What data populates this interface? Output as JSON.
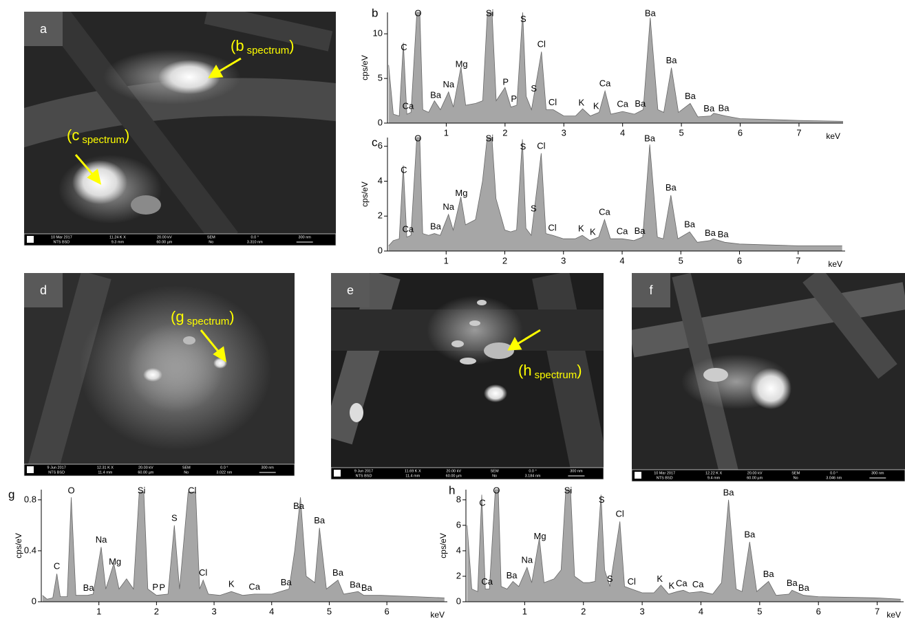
{
  "chart_data": [
    {
      "type": "area",
      "panel": "b",
      "y_label": "cps/eV",
      "x_label": "keV",
      "color": "#a6a6a6",
      "xlim": [
        0,
        7.75
      ],
      "ylim": [
        0,
        12.4
      ],
      "xticks": [
        1,
        2,
        3,
        4,
        5,
        6,
        7
      ],
      "yticks": [
        0,
        5,
        10
      ],
      "x": [
        0.02,
        0.1,
        0.2,
        0.27,
        0.33,
        0.4,
        0.5,
        0.55,
        0.6,
        0.7,
        0.8,
        0.9,
        1.04,
        1.12,
        1.25,
        1.33,
        1.5,
        1.62,
        1.7,
        1.78,
        1.85,
        2.0,
        2.1,
        2.2,
        2.3,
        2.36,
        2.45,
        2.62,
        2.7,
        2.82,
        3.0,
        3.2,
        3.32,
        3.45,
        3.6,
        3.7,
        3.8,
        4.0,
        4.2,
        4.35,
        4.47,
        4.6,
        4.7,
        4.83,
        4.95,
        5.15,
        5.28,
        5.5,
        5.55,
        5.75,
        6.0,
        7.0,
        7.75
      ],
      "values": [
        6.5,
        1,
        0.8,
        9,
        1,
        1.2,
        12.4,
        12.4,
        1.5,
        1.2,
        2.5,
        1.5,
        3.5,
        1.8,
        6.3,
        2,
        2.2,
        2.5,
        12.4,
        12.4,
        2.5,
        4,
        1.8,
        2,
        12.4,
        3,
        1.5,
        8,
        1.5,
        1.5,
        0.8,
        0.8,
        1.6,
        0.8,
        1.2,
        3.6,
        1,
        1.3,
        1,
        1.5,
        11.8,
        1.5,
        1.2,
        6.2,
        1.2,
        2.2,
        0.7,
        0.8,
        1.1,
        0.8,
        0.5,
        0.3,
        0.2
      ],
      "peaks": [
        {
          "label": "C",
          "x": 0.28
        },
        {
          "label": "Ca",
          "x": 0.35
        },
        {
          "label": "O",
          "x": 0.52
        },
        {
          "label": "Ba",
          "x": 0.82
        },
        {
          "label": "Na",
          "x": 1.04
        },
        {
          "label": "Mg",
          "x": 1.26
        },
        {
          "label": "Si",
          "x": 1.74
        },
        {
          "label": "P",
          "x": 2.01
        },
        {
          "label": "P",
          "x": 2.15
        },
        {
          "label": "S",
          "x": 2.31
        },
        {
          "label": "S",
          "x": 2.49
        },
        {
          "label": "Cl",
          "x": 2.62
        },
        {
          "label": "Cl",
          "x": 2.81
        },
        {
          "label": "K",
          "x": 3.3
        },
        {
          "label": "K",
          "x": 3.55
        },
        {
          "label": "Ca",
          "x": 3.7
        },
        {
          "label": "Ca",
          "x": 4.0
        },
        {
          "label": "Ba",
          "x": 4.3
        },
        {
          "label": "Ba",
          "x": 4.47
        },
        {
          "label": "Ba",
          "x": 4.83
        },
        {
          "label": "Ba",
          "x": 5.15
        },
        {
          "label": "Ba",
          "x": 5.47
        },
        {
          "label": "Ba",
          "x": 5.72
        }
      ]
    },
    {
      "type": "area",
      "panel": "c",
      "y_label": "cps/eV",
      "x_label": "keV",
      "color": "#a6a6a6",
      "xlim": [
        0,
        7.8
      ],
      "ylim": [
        0,
        6.5
      ],
      "xticks": [
        1,
        2,
        3,
        4,
        5,
        6,
        7
      ],
      "yticks": [
        0,
        2,
        4,
        6
      ],
      "x": [
        0.02,
        0.1,
        0.2,
        0.27,
        0.33,
        0.4,
        0.5,
        0.55,
        0.6,
        0.7,
        0.8,
        0.9,
        1.04,
        1.12,
        1.25,
        1.33,
        1.5,
        1.62,
        1.7,
        1.78,
        1.85,
        2.0,
        2.1,
        2.2,
        2.3,
        2.36,
        2.45,
        2.62,
        2.7,
        2.82,
        3.0,
        3.2,
        3.32,
        3.45,
        3.6,
        3.7,
        3.8,
        4.0,
        4.2,
        4.35,
        4.47,
        4.6,
        4.7,
        4.83,
        4.95,
        5.15,
        5.28,
        5.5,
        5.55,
        5.75,
        6.0,
        7.0,
        7.75
      ],
      "values": [
        0.3,
        0.6,
        0.7,
        4.9,
        0.8,
        0.9,
        6.5,
        6.5,
        1,
        0.9,
        1,
        0.9,
        2.1,
        1.2,
        3.1,
        1.5,
        1.8,
        4,
        6.5,
        6.5,
        3,
        1.2,
        1.1,
        1.2,
        6.4,
        1.3,
        0.9,
        5.6,
        1,
        0.9,
        0.7,
        0.7,
        0.9,
        0.6,
        0.8,
        1.8,
        0.7,
        0.7,
        0.6,
        0.8,
        6.1,
        0.8,
        0.7,
        3.2,
        0.7,
        1.1,
        0.5,
        0.6,
        0.7,
        0.5,
        0.4,
        0.3,
        0.3
      ],
      "peaks": [
        {
          "label": "C",
          "x": 0.28
        },
        {
          "label": "Ca",
          "x": 0.35
        },
        {
          "label": "O",
          "x": 0.52
        },
        {
          "label": "Ba",
          "x": 0.82
        },
        {
          "label": "Na",
          "x": 1.04
        },
        {
          "label": "Mg",
          "x": 1.26
        },
        {
          "label": "Si",
          "x": 1.74
        },
        {
          "label": "S",
          "x": 2.31
        },
        {
          "label": "S",
          "x": 2.49
        },
        {
          "label": "Cl",
          "x": 2.62
        },
        {
          "label": "Cl",
          "x": 2.81
        },
        {
          "label": "K",
          "x": 3.3
        },
        {
          "label": "K",
          "x": 3.5
        },
        {
          "label": "Ca",
          "x": 3.7
        },
        {
          "label": "Ca",
          "x": 4.0
        },
        {
          "label": "Ba",
          "x": 4.3
        },
        {
          "label": "Ba",
          "x": 4.47
        },
        {
          "label": "Ba",
          "x": 4.83
        },
        {
          "label": "Ba",
          "x": 5.15
        },
        {
          "label": "Ba",
          "x": 5.5
        },
        {
          "label": "Ba",
          "x": 5.72
        }
      ]
    },
    {
      "type": "area",
      "panel": "g",
      "y_label": "cps/eV",
      "x_label": "keV",
      "color": "#a6a6a6",
      "xlim": [
        0,
        7.05
      ],
      "ylim": [
        0,
        0.88
      ],
      "xticks": [
        1,
        2,
        3,
        4,
        5,
        6
      ],
      "yticks": [
        0,
        0.4,
        0.8
      ],
      "x": [
        0.02,
        0.1,
        0.2,
        0.27,
        0.33,
        0.45,
        0.52,
        0.6,
        0.8,
        0.9,
        1.04,
        1.12,
        1.26,
        1.35,
        1.48,
        1.6,
        1.7,
        1.78,
        1.85,
        2.0,
        2.2,
        2.31,
        2.4,
        2.55,
        2.68,
        2.75,
        2.81,
        2.9,
        3.1,
        3.3,
        3.5,
        3.7,
        4.0,
        4.3,
        4.4,
        4.5,
        4.6,
        4.75,
        4.83,
        4.95,
        5.15,
        5.25,
        5.5,
        5.6,
        5.9,
        6.5,
        7.0
      ],
      "values": [
        0.05,
        0.02,
        0.03,
        0.22,
        0.04,
        0.04,
        0.82,
        0.05,
        0.05,
        0.06,
        0.43,
        0.1,
        0.3,
        0.1,
        0.18,
        0.1,
        0.86,
        0.86,
        0.1,
        0.05,
        0.06,
        0.6,
        0.1,
        0.86,
        0.86,
        0.1,
        0.17,
        0.06,
        0.05,
        0.08,
        0.05,
        0.06,
        0.06,
        0.1,
        0.4,
        0.82,
        0.2,
        0.15,
        0.58,
        0.1,
        0.17,
        0.06,
        0.08,
        0.05,
        0.05,
        0.04,
        0.03
      ],
      "peaks": [
        {
          "label": "C",
          "x": 0.27
        },
        {
          "label": "O",
          "x": 0.52
        },
        {
          "label": "Ba",
          "x": 0.82
        },
        {
          "label": "Na",
          "x": 1.04
        },
        {
          "label": "Mg",
          "x": 1.28
        },
        {
          "label": "Si",
          "x": 1.74
        },
        {
          "label": "P",
          "x": 1.98
        },
        {
          "label": "P",
          "x": 2.1
        },
        {
          "label": "S",
          "x": 2.31
        },
        {
          "label": "Cl",
          "x": 2.62
        },
        {
          "label": "Cl",
          "x": 2.81
        },
        {
          "label": "K",
          "x": 3.3
        },
        {
          "label": "Ca",
          "x": 3.7
        },
        {
          "label": "Ba",
          "x": 4.25
        },
        {
          "label": "Ba",
          "x": 4.47
        },
        {
          "label": "Ba",
          "x": 4.83
        },
        {
          "label": "Ba",
          "x": 5.15
        },
        {
          "label": "Ba",
          "x": 5.45
        },
        {
          "label": "Ba",
          "x": 5.65
        }
      ]
    },
    {
      "type": "area",
      "panel": "h",
      "y_label": "cps/eV",
      "x_label": "keV",
      "color": "#a6a6a6",
      "xlim": [
        0,
        7.45
      ],
      "ylim": [
        0,
        8.8
      ],
      "xticks": [
        1,
        2,
        3,
        4,
        5,
        6,
        7
      ],
      "yticks": [
        0,
        2,
        4,
        6,
        8
      ],
      "x": [
        0.02,
        0.1,
        0.2,
        0.27,
        0.33,
        0.4,
        0.5,
        0.55,
        0.6,
        0.7,
        0.8,
        0.9,
        1.04,
        1.12,
        1.25,
        1.33,
        1.5,
        1.62,
        1.7,
        1.78,
        1.85,
        2.0,
        2.1,
        2.2,
        2.3,
        2.36,
        2.45,
        2.62,
        2.7,
        2.82,
        3.0,
        3.2,
        3.32,
        3.45,
        3.6,
        3.7,
        3.8,
        4.0,
        4.2,
        4.35,
        4.47,
        4.6,
        4.7,
        4.83,
        4.95,
        5.15,
        5.28,
        5.5,
        5.55,
        5.75,
        6.0,
        7.0,
        7.4
      ],
      "values": [
        6,
        1,
        0.8,
        8.4,
        1,
        1,
        8.8,
        8.8,
        1.2,
        1,
        1.6,
        1.2,
        2.7,
        1.5,
        5,
        1.5,
        1.8,
        2.5,
        8.8,
        8.8,
        2,
        1.5,
        1.5,
        1.6,
        8.4,
        2.5,
        1.2,
        6.3,
        1.2,
        1,
        0.7,
        0.7,
        1.3,
        0.6,
        0.8,
        0.9,
        0.7,
        0.8,
        0.6,
        1.5,
        8,
        1,
        0.8,
        4.7,
        0.8,
        1.6,
        0.5,
        0.6,
        0.9,
        0.5,
        0.4,
        0.3,
        0.2
      ],
      "peaks": [
        {
          "label": "C",
          "x": 0.28
        },
        {
          "label": "Ca",
          "x": 0.36
        },
        {
          "label": "O",
          "x": 0.52
        },
        {
          "label": "Ba",
          "x": 0.78
        },
        {
          "label": "Na",
          "x": 1.04
        },
        {
          "label": "Mg",
          "x": 1.26
        },
        {
          "label": "Si",
          "x": 1.74
        },
        {
          "label": "S",
          "x": 2.31
        },
        {
          "label": "S",
          "x": 2.45
        },
        {
          "label": "Cl",
          "x": 2.62
        },
        {
          "label": "Cl",
          "x": 2.82
        },
        {
          "label": "K",
          "x": 3.3
        },
        {
          "label": "K",
          "x": 3.5
        },
        {
          "label": "Ca",
          "x": 3.67
        },
        {
          "label": "Ca",
          "x": 3.95
        },
        {
          "label": "Ba",
          "x": 4.47
        },
        {
          "label": "Ba",
          "x": 4.83
        },
        {
          "label": "Ba",
          "x": 5.15
        },
        {
          "label": "Ba",
          "x": 5.55
        },
        {
          "label": "Ba",
          "x": 5.75
        }
      ]
    }
  ],
  "images": [
    {
      "label": "a",
      "annotations": [
        {
          "open": "(b",
          "sub": "spectrum",
          "close": ")"
        },
        {
          "open": "(c",
          "sub": "spectrum",
          "close": ")"
        }
      ],
      "info": [
        [
          "10 Mar 2017",
          "NTS BSD"
        ],
        [
          "11.24 K X",
          "9.3 mm"
        ],
        [
          "20.00 kV",
          "60.00 µm"
        ],
        [
          "SEM",
          "No"
        ],
        [
          "0.0 °",
          "3.310 nm"
        ],
        [
          "300 nm"
        ]
      ]
    },
    {
      "label": "d",
      "annotations": [
        {
          "open": "(g",
          "sub": "spectrum",
          "close": ")"
        }
      ],
      "info": [
        [
          "9 Jun 2017",
          "NTS BSD"
        ],
        [
          "12.31 K X",
          "11.4 mm"
        ],
        [
          "20.00 kV",
          "60.00 µm"
        ],
        [
          "SEM",
          "No"
        ],
        [
          "0.0 °",
          "3.022 nm"
        ],
        [
          "300 nm"
        ]
      ]
    },
    {
      "label": "e",
      "annotations": [
        {
          "open": "(h",
          "sub": "spectrum",
          "close": ")"
        }
      ],
      "info": [
        [
          "9 Jun 2017",
          "NTS BSD"
        ],
        [
          "11.69 K X",
          "11.4 mm"
        ],
        [
          "20.00 kV",
          "60.00 µm"
        ],
        [
          "SEM",
          "No"
        ],
        [
          "0.0 °",
          "3.184 nm"
        ],
        [
          "300 nm"
        ]
      ]
    },
    {
      "label": "f",
      "annotations": [],
      "info": [
        [
          "10 Mar 2017",
          "NTS BSD"
        ],
        [
          "12.22 K X",
          "9.4 mm"
        ],
        [
          "20.00 kV",
          "60.00 µm"
        ],
        [
          "SEM",
          "No"
        ],
        [
          "0.0 °",
          "3.046 nm"
        ],
        [
          "300 nm"
        ]
      ]
    }
  ]
}
